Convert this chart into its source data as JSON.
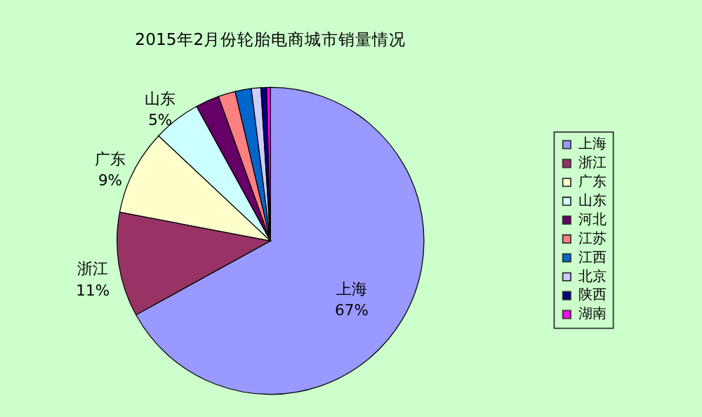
{
  "chart_data": {
    "type": "pie",
    "title": "2015年2月份轮胎电商城市销量情况",
    "categories": [
      "上海",
      "浙江",
      "广东",
      "山东",
      "河北",
      "江苏",
      "江西",
      "北京",
      "陕西",
      "湖南"
    ],
    "values": [
      67,
      11,
      9,
      5,
      2.5,
      1.8,
      1.7,
      1,
      0.6,
      0.4
    ],
    "value_labels": [
      "67%",
      "11%",
      "9%",
      "5%",
      null,
      null,
      null,
      null,
      null,
      null
    ],
    "colors": [
      "#9999ff",
      "#993366",
      "#ffffcc",
      "#ccffff",
      "#660066",
      "#ff8080",
      "#0066cc",
      "#ccccff",
      "#000080",
      "#ff00ff"
    ],
    "legend": "right"
  }
}
